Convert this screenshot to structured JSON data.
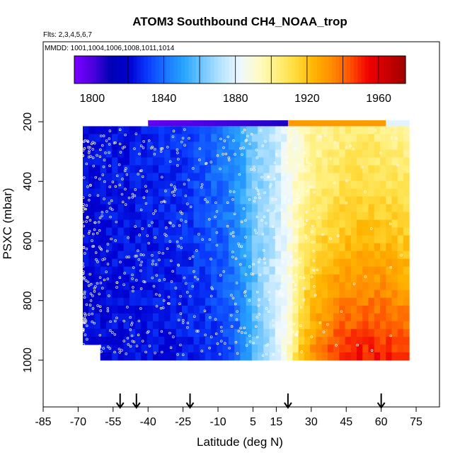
{
  "chart_data": {
    "type": "heatmap",
    "title": "ATOM3 Southbound CH4_NOAA_trop",
    "subtitle_flights": "Flts: 2,3,4,5,6,7",
    "subtitle_dates": "MMDD: 1001,1004,1006,1008,1011,1014",
    "xlabel": "Latitude (deg N)",
    "ylabel": "PSXC (mbar)",
    "xlim": [
      -85,
      85
    ],
    "ylim": [
      1000,
      150
    ],
    "y_reversed": true,
    "x_ticks": [
      -85,
      -70,
      -55,
      -40,
      -25,
      -10,
      5,
      15,
      30,
      45,
      60,
      75
    ],
    "y_ticks": [
      200,
      400,
      600,
      800,
      1000
    ],
    "colorbar": {
      "min": 1790,
      "max": 1975,
      "ticks": [
        1800,
        1840,
        1880,
        1920,
        1960
      ],
      "colors": [
        "#7b00ff",
        "#4b00e0",
        "#0000b4",
        "#0000d2",
        "#0a3cff",
        "#1a78ff",
        "#2aa6ff",
        "#74c8ff",
        "#b8e4ff",
        "#eef8ff",
        "#fffbc8",
        "#fff080",
        "#ffdc3c",
        "#ffb400",
        "#ff8c00",
        "#ff5000",
        "#f00000",
        "#c80000",
        "#a00000"
      ]
    },
    "profile": {
      "lat": [
        -67,
        -55,
        -40,
        -25,
        -12,
        -2,
        5,
        10,
        15,
        20,
        25,
        30,
        40,
        50,
        60,
        72
      ],
      "ch4_surface": [
        1820,
        1822,
        1823,
        1825,
        1828,
        1836,
        1855,
        1868,
        1878,
        1890,
        1918,
        1932,
        1948,
        1954,
        1952,
        1948
      ],
      "ch4_upper": [
        1822,
        1824,
        1826,
        1830,
        1838,
        1848,
        1862,
        1868,
        1874,
        1884,
        1892,
        1898,
        1902,
        1906,
        1904,
        1900
      ]
    },
    "arrow_latitudes": [
      -52,
      -45,
      -22,
      20,
      60
    ],
    "grid": false,
    "legend": "colorbar top"
  }
}
